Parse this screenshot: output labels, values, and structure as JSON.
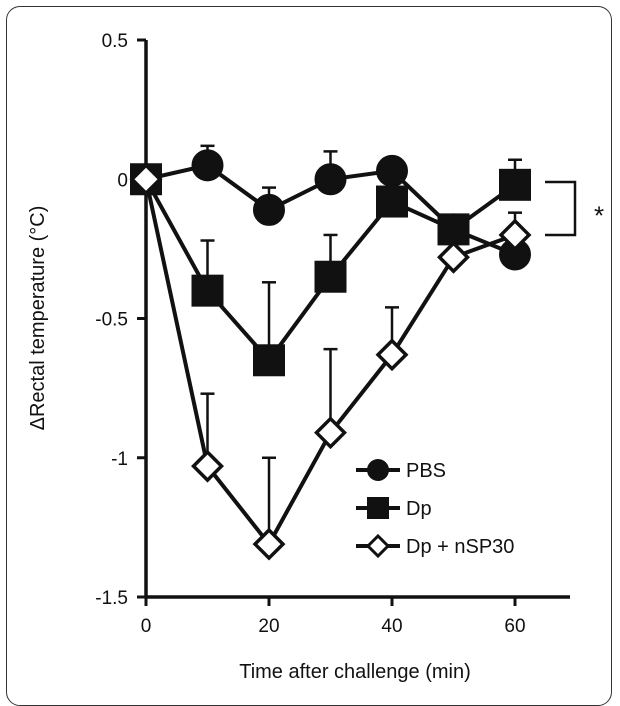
{
  "chart_data": {
    "type": "line",
    "title": "",
    "xlabel": "Time after challenge (min)",
    "ylabel": "ΔRectal temperature (°C)",
    "xlim": [
      0,
      70
    ],
    "ylim": [
      -1.5,
      0.5
    ],
    "xticks": [
      0,
      20,
      40,
      60
    ],
    "yticks": [
      0.5,
      0,
      -0.5,
      -1,
      -1.5
    ],
    "xtick_labels": [
      "0",
      "20",
      "40",
      "60"
    ],
    "ytick_labels": [
      "0.5",
      "0",
      "-0.5",
      "-1",
      "-1.5"
    ],
    "grid": false,
    "legend_position": "bottom-right",
    "series": [
      {
        "name": "PBS",
        "marker": "circle",
        "x": [
          0,
          10,
          20,
          30,
          40,
          50,
          60
        ],
        "y": [
          0,
          0.05,
          -0.11,
          0,
          0.03,
          -0.18,
          -0.27
        ],
        "err_up": [
          0,
          0.07,
          0.08,
          0.1,
          0.03,
          0.05,
          0.05
        ]
      },
      {
        "name": "Dp",
        "marker": "square",
        "x": [
          0,
          10,
          20,
          30,
          40,
          50,
          60
        ],
        "y": [
          0,
          -0.4,
          -0.65,
          -0.35,
          -0.08,
          -0.18,
          -0.02
        ],
        "err_up": [
          0,
          0.18,
          0.28,
          0.15,
          0.04,
          0.04,
          0.09
        ]
      },
      {
        "name": "Dp + nSP30",
        "marker": "diamond",
        "x": [
          0,
          10,
          20,
          30,
          40,
          50,
          60
        ],
        "y": [
          0,
          -1.03,
          -1.31,
          -0.91,
          -0.63,
          -0.28,
          -0.2
        ],
        "err_up": [
          0,
          0.26,
          0.31,
          0.3,
          0.17,
          0.02,
          0.08
        ]
      }
    ],
    "annotations": [
      {
        "text": "*",
        "type": "significance-bracket",
        "between": [
          "Dp",
          "Dp + nSP30"
        ],
        "at_x": 60
      }
    ]
  }
}
